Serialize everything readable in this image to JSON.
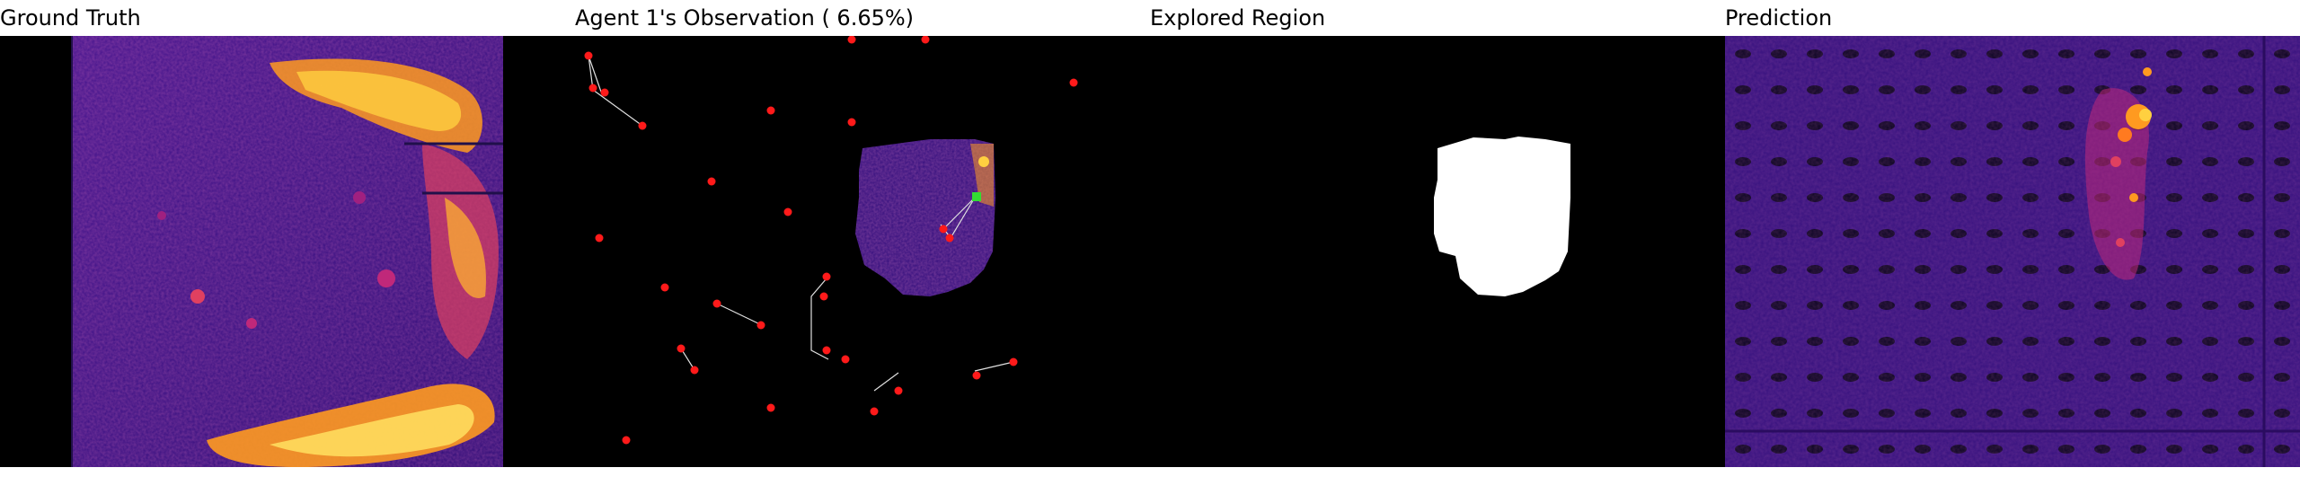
{
  "panels": {
    "ground_truth": {
      "title": "Ground Truth"
    },
    "observation": {
      "title": "Agent 1's Observation ( 6.65%)"
    },
    "explored": {
      "title": "Explored Region"
    },
    "prediction": {
      "title": "Prediction"
    }
  },
  "colors": {
    "background": "#000000",
    "heatmap_base": "#3a0f7a",
    "heatmap_mid": "#c0287a",
    "heatmap_hot": "#ffc830",
    "agent_marker": "#ff1a1a",
    "active_agent_marker": "#33dd33",
    "explored_area": "#ffffff"
  }
}
